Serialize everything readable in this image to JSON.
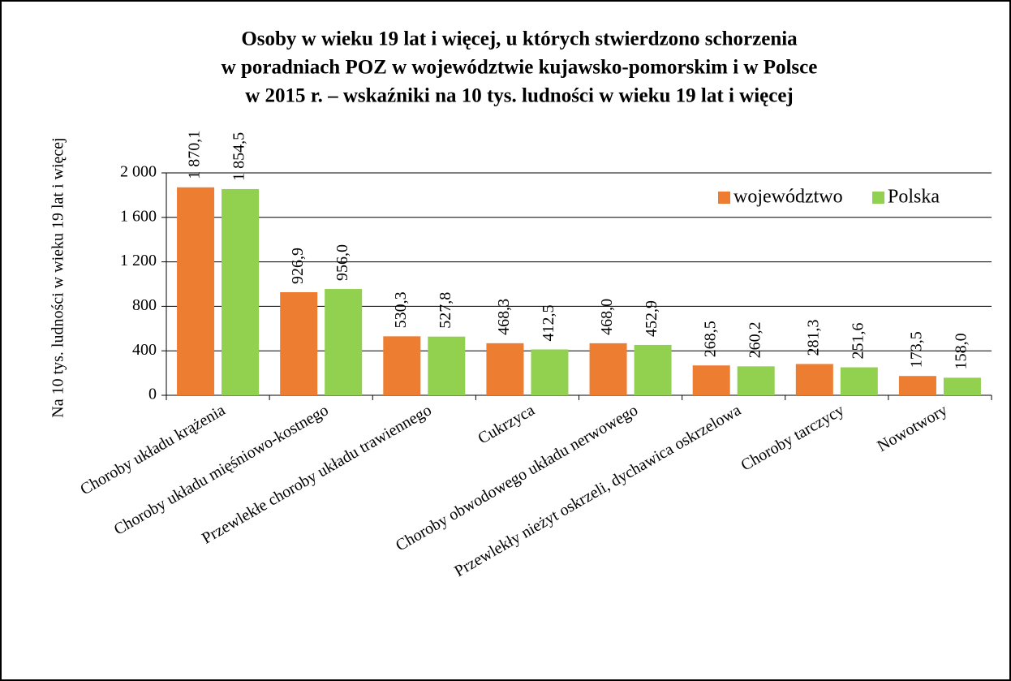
{
  "chart_data": {
    "type": "bar",
    "title": [
      "Osoby w wieku 19 lat i więcej, u których stwierdzono schorzenia",
      "w poradniach POZ w województwie kujawsko-pomorskim i w Polsce",
      "w 2015 r. – wskaźniki na 10 tys. ludności w wieku 19 lat i więcej"
    ],
    "y_label": "Na 10 tys. ludności w wieku 19 lat i więcej",
    "categories": [
      "Choroby układu krążenia",
      "Choroby układu mięśniowo-kostnego",
      "Przewlekłe choroby układu trawiennego",
      "Cukrzyca",
      "Choroby obwodowego układu nerwowego",
      "Przewlekły nieżyt oskrzeli, dychawica oskrzelowa",
      "Choroby tarczycy",
      "Nowotwory"
    ],
    "series": [
      {
        "name": "województwo",
        "color": "#ed7d31",
        "values": [
          1870.1,
          926.9,
          530.3,
          468.3,
          468.0,
          268.5,
          281.3,
          173.5
        ],
        "value_labels": [
          "1 870,1",
          "926,9",
          "530,3",
          "468,3",
          "468,0",
          "268,5",
          "281,3",
          "173,5"
        ]
      },
      {
        "name": "Polska",
        "color": "#92d050",
        "values": [
          1854.5,
          956.0,
          527.8,
          412.5,
          452.9,
          260.2,
          251.6,
          158.0
        ],
        "value_labels": [
          "1 854,5",
          "956,0",
          "527,8",
          "412,5",
          "452,9",
          "260,2",
          "251,6",
          "158,0"
        ]
      }
    ],
    "ylim": [
      0,
      2000
    ],
    "yticks": [
      0,
      400,
      800,
      {
        "value": 1200,
        "label": "1 200"
      },
      {
        "value": 1600,
        "label": "1 600"
      },
      {
        "value": 2000,
        "label": "2 000"
      }
    ],
    "grid": true,
    "legend": "upper right"
  }
}
